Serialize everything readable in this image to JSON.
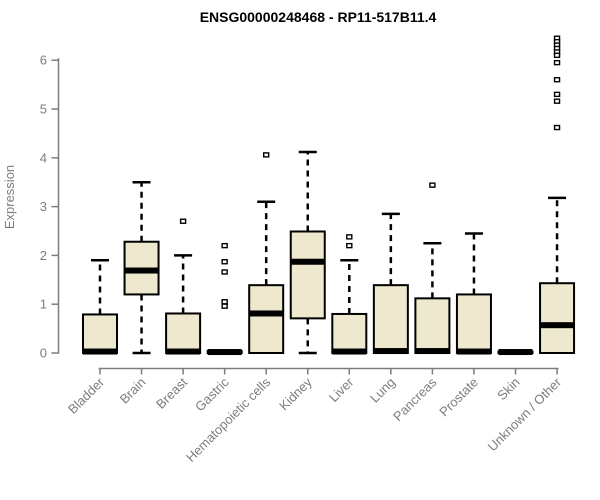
{
  "chart_data": {
    "type": "boxplot",
    "title": "ENSG00000248468 - RP11-517B11.4",
    "ylabel": "Expression",
    "ylim": [
      0,
      6.5
    ],
    "yticks": [
      0,
      1,
      2,
      3,
      4,
      5,
      6
    ],
    "grid": false,
    "legend": false,
    "categories": [
      "Bladder",
      "Brain",
      "Breast",
      "Gastric",
      "Hematopoietic cells",
      "Kidney",
      "Liver",
      "Lung",
      "Pancreas",
      "Prostate",
      "Skin",
      "Unknown / Other"
    ],
    "series": [
      {
        "category": "Bladder",
        "whisker_low": 0,
        "q1": 0,
        "median": 0.03,
        "q3": 0.79,
        "whisker_high": 1.9,
        "outliers": []
      },
      {
        "category": "Brain",
        "whisker_low": 0,
        "q1": 1.2,
        "median": 1.69,
        "q3": 2.28,
        "whisker_high": 3.5,
        "outliers": []
      },
      {
        "category": "Breast",
        "whisker_low": 0,
        "q1": 0,
        "median": 0.03,
        "q3": 0.81,
        "whisker_high": 2.0,
        "outliers": [
          2.7
        ]
      },
      {
        "category": "Gastric",
        "whisker_low": 0,
        "q1": 0,
        "median": 0.02,
        "q3": 0.04,
        "whisker_high": 0.04,
        "outliers": [
          2.2,
          1.87,
          1.66,
          1.05,
          0.96
        ]
      },
      {
        "category": "Hematopoietic cells",
        "whisker_low": 0,
        "q1": 0,
        "median": 0.81,
        "q3": 1.39,
        "whisker_high": 3.1,
        "outliers": [
          4.06
        ]
      },
      {
        "category": "Kidney",
        "whisker_low": 0,
        "q1": 0.71,
        "median": 1.87,
        "q3": 2.49,
        "whisker_high": 4.12,
        "outliers": []
      },
      {
        "category": "Liver",
        "whisker_low": 0,
        "q1": 0,
        "median": 0.03,
        "q3": 0.8,
        "whisker_high": 1.9,
        "outliers": [
          2.38,
          2.2
        ]
      },
      {
        "category": "Lung",
        "whisker_low": 0,
        "q1": 0,
        "median": 0.04,
        "q3": 1.39,
        "whisker_high": 2.85,
        "outliers": []
      },
      {
        "category": "Pancreas",
        "whisker_low": 0,
        "q1": 0,
        "median": 0.04,
        "q3": 1.12,
        "whisker_high": 2.25,
        "outliers": [
          3.44
        ]
      },
      {
        "category": "Prostate",
        "whisker_low": 0,
        "q1": 0,
        "median": 0.03,
        "q3": 1.2,
        "whisker_high": 2.45,
        "outliers": []
      },
      {
        "category": "Skin",
        "whisker_low": 0,
        "q1": 0,
        "median": 0.02,
        "q3": 0.03,
        "whisker_high": 0.03,
        "outliers": []
      },
      {
        "category": "Unknown / Other",
        "whisker_low": 0,
        "q1": 0,
        "median": 0.57,
        "q3": 1.43,
        "whisker_high": 3.18,
        "outliers": [
          6.45,
          6.38,
          6.31,
          6.24,
          6.17,
          6.1,
          5.95,
          5.6,
          5.3,
          5.16,
          4.62
        ]
      }
    ]
  },
  "colors": {
    "box_fill": "#ede8ce",
    "box_border": "#000000",
    "median": "#000000",
    "whisker": "#000000",
    "outlier_stroke": "#000000",
    "outlier_fill": "#ffffff",
    "axis": "#7d7d7d",
    "axis_text": "#7d7d7d",
    "title": "#000000",
    "background": "#ffffff"
  }
}
